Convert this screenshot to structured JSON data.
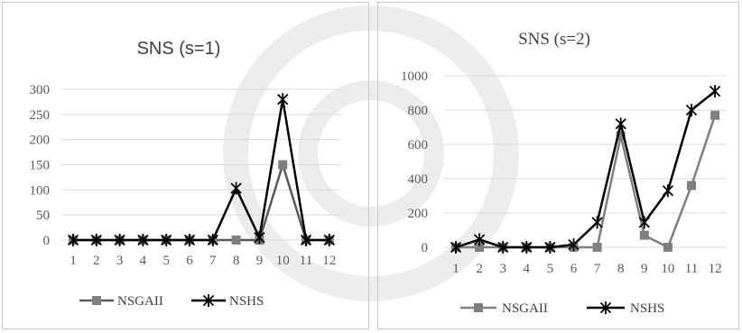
{
  "chart_data": [
    {
      "type": "line",
      "title": "SNS (s=1)",
      "categories": [
        "1",
        "2",
        "3",
        "4",
        "5",
        "6",
        "7",
        "8",
        "9",
        "10",
        "11",
        "12"
      ],
      "ylim": [
        0,
        300
      ],
      "yticks": [
        "0",
        "50",
        "100",
        "150",
        "200",
        "250",
        "300"
      ],
      "grid": true,
      "legend_position": "bottom",
      "series": [
        {
          "name": "NSGAII",
          "marker": "square",
          "color": "#7f7f7f",
          "values": [
            0,
            0,
            0,
            0,
            0,
            0,
            0,
            0,
            0,
            150,
            0,
            0
          ]
        },
        {
          "name": "NSHS",
          "marker": "star",
          "color": "#000000",
          "values": [
            0,
            0,
            0,
            0,
            0,
            0,
            0,
            103,
            5,
            280,
            0,
            0
          ]
        }
      ]
    },
    {
      "type": "line",
      "title": "SNS (s=2)",
      "categories": [
        "1",
        "2",
        "3",
        "4",
        "5",
        "6",
        "7",
        "8",
        "9",
        "10",
        "11",
        "12"
      ],
      "ylim": [
        0,
        1000
      ],
      "yticks": [
        "0",
        "200",
        "400",
        "600",
        "800",
        "1000"
      ],
      "grid": true,
      "legend_position": "bottom",
      "series": [
        {
          "name": "NSGAII",
          "marker": "square",
          "color": "#7f7f7f",
          "values": [
            0,
            0,
            0,
            0,
            0,
            0,
            0,
            650,
            70,
            0,
            360,
            770
          ]
        },
        {
          "name": "NSHS",
          "marker": "star",
          "color": "#000000",
          "values": [
            0,
            45,
            0,
            0,
            0,
            15,
            145,
            720,
            145,
            330,
            800,
            910
          ]
        }
      ]
    }
  ]
}
